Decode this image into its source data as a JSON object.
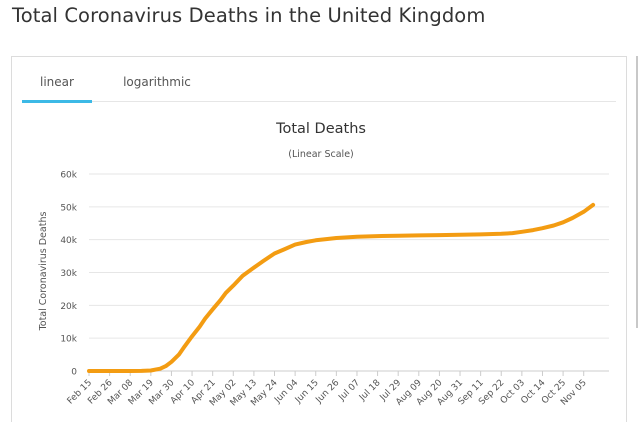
{
  "page": {
    "title": "Total Coronavirus Deaths in the United Kingdom"
  },
  "tabs": [
    {
      "label": "linear",
      "active": true
    },
    {
      "label": "logarithmic",
      "active": false
    }
  ],
  "colors": {
    "line": "#f39c12",
    "tab_active": "#3cb9e6",
    "grid": "#e6e6e6"
  },
  "chart_data": {
    "type": "line",
    "title": "Total Deaths",
    "subtitle": "(Linear Scale)",
    "ylabel": "Total Coronavirus Deaths",
    "xlabel": "",
    "ylim": [
      0,
      60000
    ],
    "y_ticks": [
      "0",
      "10k",
      "20k",
      "30k",
      "40k",
      "50k",
      "60k"
    ],
    "y_tick_values": [
      0,
      10000,
      20000,
      30000,
      40000,
      50000,
      60000
    ],
    "x_tick_labels": [
      "Feb 15",
      "Feb 26",
      "Mar 08",
      "Mar 19",
      "Mar 30",
      "Apr 10",
      "Apr 21",
      "May 02",
      "May 13",
      "May 24",
      "Jun 04",
      "Jun 15",
      "Jun 26",
      "Jul 07",
      "Jul 18",
      "Jul 29",
      "Aug 09",
      "Aug 20",
      "Aug 31",
      "Sep 11",
      "Sep 22",
      "Oct 03",
      "Oct 14",
      "Oct 25",
      "Nov 05"
    ],
    "grid": true,
    "legend": "none",
    "series": [
      {
        "x": [
          "Feb 15",
          "Feb 26",
          "Mar 08",
          "Mar 14",
          "Mar 19",
          "Mar 24",
          "Mar 27",
          "Mar 30",
          "Apr 03",
          "Apr 06",
          "Apr 10",
          "Apr 14",
          "Apr 17",
          "Apr 21",
          "Apr 25",
          "Apr 28",
          "May 02",
          "May 07",
          "May 13",
          "May 18",
          "May 24",
          "May 29",
          "Jun 04",
          "Jun 10",
          "Jun 15",
          "Jun 20",
          "Jun 26",
          "Jul 07",
          "Jul 18",
          "Jul 29",
          "Aug 09",
          "Aug 20",
          "Aug 31",
          "Sep 11",
          "Sep 22",
          "Sep 28",
          "Oct 03",
          "Oct 09",
          "Oct 14",
          "Oct 20",
          "Oct 25",
          "Oct 30",
          "Nov 05",
          "Nov 10"
        ],
        "values": [
          0,
          0,
          0,
          20,
          140,
          700,
          1500,
          2800,
          5000,
          7500,
          10600,
          13500,
          16000,
          18800,
          21500,
          23800,
          26000,
          29000,
          31500,
          33500,
          35800,
          37000,
          38500,
          39300,
          39800,
          40100,
          40500,
          40900,
          41100,
          41200,
          41300,
          41400,
          41500,
          41600,
          41800,
          42000,
          42400,
          42900,
          43500,
          44300,
          45300,
          46600,
          48500,
          50600
        ]
      }
    ]
  }
}
